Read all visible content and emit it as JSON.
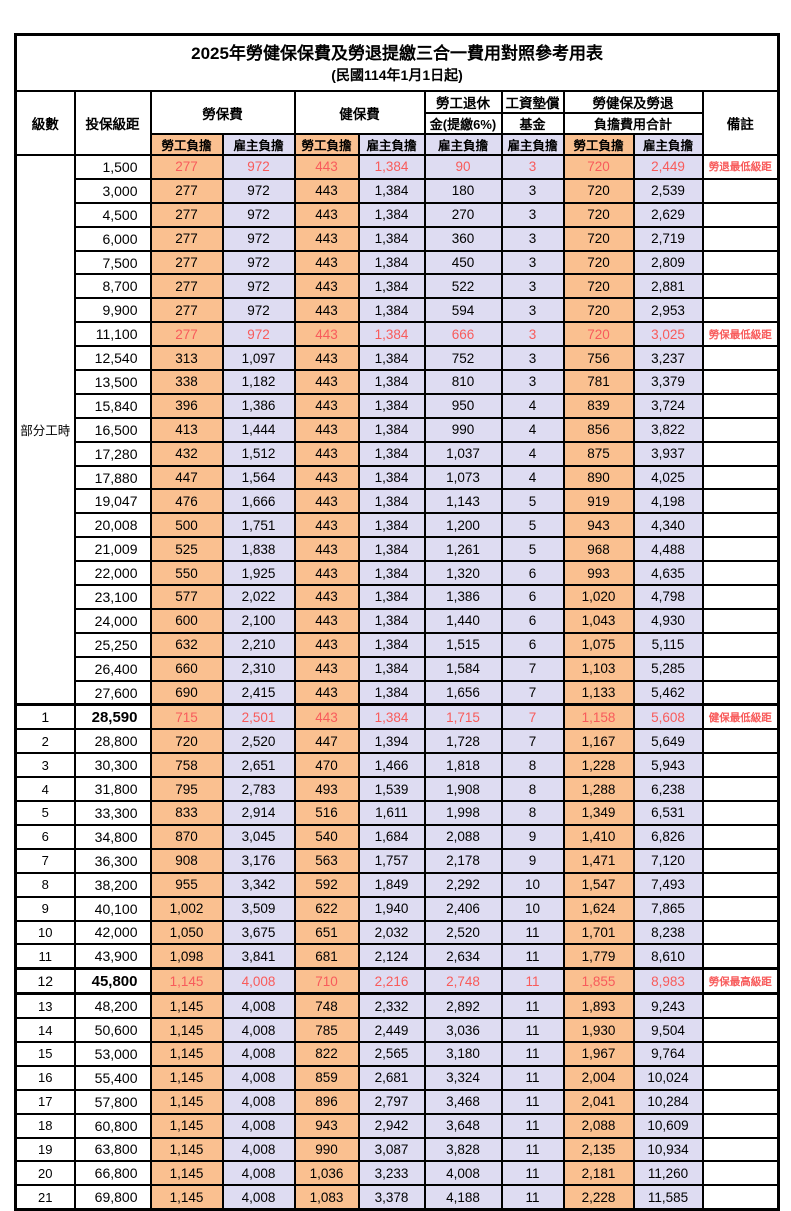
{
  "title": "2025年勞健保保費及勞退提繳三合一費用對照參考用表",
  "subtitle": "(民國114年1月1日起)",
  "colors": {
    "employee_bg": "#fac090",
    "employer_bg": "#dedcf2",
    "highlight_text": "#f85b5b",
    "border": "#000000"
  },
  "header": {
    "level": "級數",
    "bracket": "投保級距",
    "labor_insurance": "勞保費",
    "health_insurance": "健保費",
    "pension_line1": "勞工退休",
    "pension_line2": "金(提繳6%)",
    "wage_fund_line1": "工資墊償",
    "wage_fund_line2": "基金",
    "total_line1": "勞健保及勞退",
    "total_line2": "負擔費用合計",
    "remark": "備註",
    "employee": "勞工負擔",
    "employer": "雇主負擔"
  },
  "part_time_label": "部分工時",
  "rows": [
    {
      "level": "",
      "bracket": "1,500",
      "li_emp": "277",
      "li_er": "972",
      "hi_emp": "443",
      "hi_er": "1,384",
      "pension": "90",
      "wage_fund": "3",
      "total_emp": "720",
      "total_er": "2,449",
      "remark": "勞退最低級距",
      "highlight": true
    },
    {
      "level": "",
      "bracket": "3,000",
      "li_emp": "277",
      "li_er": "972",
      "hi_emp": "443",
      "hi_er": "1,384",
      "pension": "180",
      "wage_fund": "3",
      "total_emp": "720",
      "total_er": "2,539",
      "remark": ""
    },
    {
      "level": "",
      "bracket": "4,500",
      "li_emp": "277",
      "li_er": "972",
      "hi_emp": "443",
      "hi_er": "1,384",
      "pension": "270",
      "wage_fund": "3",
      "total_emp": "720",
      "total_er": "2,629",
      "remark": ""
    },
    {
      "level": "",
      "bracket": "6,000",
      "li_emp": "277",
      "li_er": "972",
      "hi_emp": "443",
      "hi_er": "1,384",
      "pension": "360",
      "wage_fund": "3",
      "total_emp": "720",
      "total_er": "2,719",
      "remark": ""
    },
    {
      "level": "",
      "bracket": "7,500",
      "li_emp": "277",
      "li_er": "972",
      "hi_emp": "443",
      "hi_er": "1,384",
      "pension": "450",
      "wage_fund": "3",
      "total_emp": "720",
      "total_er": "2,809",
      "remark": ""
    },
    {
      "level": "",
      "bracket": "8,700",
      "li_emp": "277",
      "li_er": "972",
      "hi_emp": "443",
      "hi_er": "1,384",
      "pension": "522",
      "wage_fund": "3",
      "total_emp": "720",
      "total_er": "2,881",
      "remark": ""
    },
    {
      "level": "",
      "bracket": "9,900",
      "li_emp": "277",
      "li_er": "972",
      "hi_emp": "443",
      "hi_er": "1,384",
      "pension": "594",
      "wage_fund": "3",
      "total_emp": "720",
      "total_er": "2,953",
      "remark": ""
    },
    {
      "level": "",
      "bracket": "11,100",
      "li_emp": "277",
      "li_er": "972",
      "hi_emp": "443",
      "hi_er": "1,384",
      "pension": "666",
      "wage_fund": "3",
      "total_emp": "720",
      "total_er": "3,025",
      "remark": "勞保最低級距",
      "highlight": true
    },
    {
      "level": "",
      "bracket": "12,540",
      "li_emp": "313",
      "li_er": "1,097",
      "hi_emp": "443",
      "hi_er": "1,384",
      "pension": "752",
      "wage_fund": "3",
      "total_emp": "756",
      "total_er": "3,237",
      "remark": ""
    },
    {
      "level": "",
      "bracket": "13,500",
      "li_emp": "338",
      "li_er": "1,182",
      "hi_emp": "443",
      "hi_er": "1,384",
      "pension": "810",
      "wage_fund": "3",
      "total_emp": "781",
      "total_er": "3,379",
      "remark": ""
    },
    {
      "level": "",
      "bracket": "15,840",
      "li_emp": "396",
      "li_er": "1,386",
      "hi_emp": "443",
      "hi_er": "1,384",
      "pension": "950",
      "wage_fund": "4",
      "total_emp": "839",
      "total_er": "3,724",
      "remark": ""
    },
    {
      "level": "",
      "bracket": "16,500",
      "li_emp": "413",
      "li_er": "1,444",
      "hi_emp": "443",
      "hi_er": "1,384",
      "pension": "990",
      "wage_fund": "4",
      "total_emp": "856",
      "total_er": "3,822",
      "remark": ""
    },
    {
      "level": "",
      "bracket": "17,280",
      "li_emp": "432",
      "li_er": "1,512",
      "hi_emp": "443",
      "hi_er": "1,384",
      "pension": "1,037",
      "wage_fund": "4",
      "total_emp": "875",
      "total_er": "3,937",
      "remark": ""
    },
    {
      "level": "",
      "bracket": "17,880",
      "li_emp": "447",
      "li_er": "1,564",
      "hi_emp": "443",
      "hi_er": "1,384",
      "pension": "1,073",
      "wage_fund": "4",
      "total_emp": "890",
      "total_er": "4,025",
      "remark": ""
    },
    {
      "level": "",
      "bracket": "19,047",
      "li_emp": "476",
      "li_er": "1,666",
      "hi_emp": "443",
      "hi_er": "1,384",
      "pension": "1,143",
      "wage_fund": "5",
      "total_emp": "919",
      "total_er": "4,198",
      "remark": ""
    },
    {
      "level": "",
      "bracket": "20,008",
      "li_emp": "500",
      "li_er": "1,751",
      "hi_emp": "443",
      "hi_er": "1,384",
      "pension": "1,200",
      "wage_fund": "5",
      "total_emp": "943",
      "total_er": "4,340",
      "remark": ""
    },
    {
      "level": "",
      "bracket": "21,009",
      "li_emp": "525",
      "li_er": "1,838",
      "hi_emp": "443",
      "hi_er": "1,384",
      "pension": "1,261",
      "wage_fund": "5",
      "total_emp": "968",
      "total_er": "4,488",
      "remark": ""
    },
    {
      "level": "",
      "bracket": "22,000",
      "li_emp": "550",
      "li_er": "1,925",
      "hi_emp": "443",
      "hi_er": "1,384",
      "pension": "1,320",
      "wage_fund": "6",
      "total_emp": "993",
      "total_er": "4,635",
      "remark": ""
    },
    {
      "level": "",
      "bracket": "23,100",
      "li_emp": "577",
      "li_er": "2,022",
      "hi_emp": "443",
      "hi_er": "1,384",
      "pension": "1,386",
      "wage_fund": "6",
      "total_emp": "1,020",
      "total_er": "4,798",
      "remark": ""
    },
    {
      "level": "",
      "bracket": "24,000",
      "li_emp": "600",
      "li_er": "2,100",
      "hi_emp": "443",
      "hi_er": "1,384",
      "pension": "1,440",
      "wage_fund": "6",
      "total_emp": "1,043",
      "total_er": "4,930",
      "remark": ""
    },
    {
      "level": "",
      "bracket": "25,250",
      "li_emp": "632",
      "li_er": "2,210",
      "hi_emp": "443",
      "hi_er": "1,384",
      "pension": "1,515",
      "wage_fund": "6",
      "total_emp": "1,075",
      "total_er": "5,115",
      "remark": ""
    },
    {
      "level": "",
      "bracket": "26,400",
      "li_emp": "660",
      "li_er": "2,310",
      "hi_emp": "443",
      "hi_er": "1,384",
      "pension": "1,584",
      "wage_fund": "7",
      "total_emp": "1,103",
      "total_er": "5,285",
      "remark": ""
    },
    {
      "level": "",
      "bracket": "27,600",
      "li_emp": "690",
      "li_er": "2,415",
      "hi_emp": "443",
      "hi_er": "1,384",
      "pension": "1,656",
      "wage_fund": "7",
      "total_emp": "1,133",
      "total_er": "5,462",
      "remark": ""
    },
    {
      "level": "1",
      "bracket": "28,590",
      "li_emp": "715",
      "li_er": "2,501",
      "hi_emp": "443",
      "hi_er": "1,384",
      "pension": "1,715",
      "wage_fund": "7",
      "total_emp": "1,158",
      "total_er": "5,608",
      "remark": "健保最低級距",
      "highlight": true,
      "bold": true,
      "thick_top": true
    },
    {
      "level": "2",
      "bracket": "28,800",
      "li_emp": "720",
      "li_er": "2,520",
      "hi_emp": "447",
      "hi_er": "1,394",
      "pension": "1,728",
      "wage_fund": "7",
      "total_emp": "1,167",
      "total_er": "5,649",
      "remark": ""
    },
    {
      "level": "3",
      "bracket": "30,300",
      "li_emp": "758",
      "li_er": "2,651",
      "hi_emp": "470",
      "hi_er": "1,466",
      "pension": "1,818",
      "wage_fund": "8",
      "total_emp": "1,228",
      "total_er": "5,943",
      "remark": ""
    },
    {
      "level": "4",
      "bracket": "31,800",
      "li_emp": "795",
      "li_er": "2,783",
      "hi_emp": "493",
      "hi_er": "1,539",
      "pension": "1,908",
      "wage_fund": "8",
      "total_emp": "1,288",
      "total_er": "6,238",
      "remark": ""
    },
    {
      "level": "5",
      "bracket": "33,300",
      "li_emp": "833",
      "li_er": "2,914",
      "hi_emp": "516",
      "hi_er": "1,611",
      "pension": "1,998",
      "wage_fund": "8",
      "total_emp": "1,349",
      "total_er": "6,531",
      "remark": ""
    },
    {
      "level": "6",
      "bracket": "34,800",
      "li_emp": "870",
      "li_er": "3,045",
      "hi_emp": "540",
      "hi_er": "1,684",
      "pension": "2,088",
      "wage_fund": "9",
      "total_emp": "1,410",
      "total_er": "6,826",
      "remark": ""
    },
    {
      "level": "7",
      "bracket": "36,300",
      "li_emp": "908",
      "li_er": "3,176",
      "hi_emp": "563",
      "hi_er": "1,757",
      "pension": "2,178",
      "wage_fund": "9",
      "total_emp": "1,471",
      "total_er": "7,120",
      "remark": ""
    },
    {
      "level": "8",
      "bracket": "38,200",
      "li_emp": "955",
      "li_er": "3,342",
      "hi_emp": "592",
      "hi_er": "1,849",
      "pension": "2,292",
      "wage_fund": "10",
      "total_emp": "1,547",
      "total_er": "7,493",
      "remark": ""
    },
    {
      "level": "9",
      "bracket": "40,100",
      "li_emp": "1,002",
      "li_er": "3,509",
      "hi_emp": "622",
      "hi_er": "1,940",
      "pension": "2,406",
      "wage_fund": "10",
      "total_emp": "1,624",
      "total_er": "7,865",
      "remark": ""
    },
    {
      "level": "10",
      "bracket": "42,000",
      "li_emp": "1,050",
      "li_er": "3,675",
      "hi_emp": "651",
      "hi_er": "2,032",
      "pension": "2,520",
      "wage_fund": "11",
      "total_emp": "1,701",
      "total_er": "8,238",
      "remark": ""
    },
    {
      "level": "11",
      "bracket": "43,900",
      "li_emp": "1,098",
      "li_er": "3,841",
      "hi_emp": "681",
      "hi_er": "2,124",
      "pension": "2,634",
      "wage_fund": "11",
      "total_emp": "1,779",
      "total_er": "8,610",
      "remark": ""
    },
    {
      "level": "12",
      "bracket": "45,800",
      "li_emp": "1,145",
      "li_er": "4,008",
      "hi_emp": "710",
      "hi_er": "2,216",
      "pension": "2,748",
      "wage_fund": "11",
      "total_emp": "1,855",
      "total_er": "8,983",
      "remark": "勞保最高級距",
      "highlight": true,
      "bold": true,
      "thick_top": true
    },
    {
      "level": "13",
      "bracket": "48,200",
      "li_emp": "1,145",
      "li_er": "4,008",
      "hi_emp": "748",
      "hi_er": "2,332",
      "pension": "2,892",
      "wage_fund": "11",
      "total_emp": "1,893",
      "total_er": "9,243",
      "remark": "",
      "thick_top": true
    },
    {
      "level": "14",
      "bracket": "50,600",
      "li_emp": "1,145",
      "li_er": "4,008",
      "hi_emp": "785",
      "hi_er": "2,449",
      "pension": "3,036",
      "wage_fund": "11",
      "total_emp": "1,930",
      "total_er": "9,504",
      "remark": ""
    },
    {
      "level": "15",
      "bracket": "53,000",
      "li_emp": "1,145",
      "li_er": "4,008",
      "hi_emp": "822",
      "hi_er": "2,565",
      "pension": "3,180",
      "wage_fund": "11",
      "total_emp": "1,967",
      "total_er": "9,764",
      "remark": ""
    },
    {
      "level": "16",
      "bracket": "55,400",
      "li_emp": "1,145",
      "li_er": "4,008",
      "hi_emp": "859",
      "hi_er": "2,681",
      "pension": "3,324",
      "wage_fund": "11",
      "total_emp": "2,004",
      "total_er": "10,024",
      "remark": ""
    },
    {
      "level": "17",
      "bracket": "57,800",
      "li_emp": "1,145",
      "li_er": "4,008",
      "hi_emp": "896",
      "hi_er": "2,797",
      "pension": "3,468",
      "wage_fund": "11",
      "total_emp": "2,041",
      "total_er": "10,284",
      "remark": ""
    },
    {
      "level": "18",
      "bracket": "60,800",
      "li_emp": "1,145",
      "li_er": "4,008",
      "hi_emp": "943",
      "hi_er": "2,942",
      "pension": "3,648",
      "wage_fund": "11",
      "total_emp": "2,088",
      "total_er": "10,609",
      "remark": ""
    },
    {
      "level": "19",
      "bracket": "63,800",
      "li_emp": "1,145",
      "li_er": "4,008",
      "hi_emp": "990",
      "hi_er": "3,087",
      "pension": "3,828",
      "wage_fund": "11",
      "total_emp": "2,135",
      "total_er": "10,934",
      "remark": ""
    },
    {
      "level": "20",
      "bracket": "66,800",
      "li_emp": "1,145",
      "li_er": "4,008",
      "hi_emp": "1,036",
      "hi_er": "3,233",
      "pension": "4,008",
      "wage_fund": "11",
      "total_emp": "2,181",
      "total_er": "11,260",
      "remark": ""
    },
    {
      "level": "21",
      "bracket": "69,800",
      "li_emp": "1,145",
      "li_er": "4,008",
      "hi_emp": "1,083",
      "hi_er": "3,378",
      "pension": "4,188",
      "wage_fund": "11",
      "total_emp": "2,228",
      "total_er": "11,585",
      "remark": ""
    }
  ]
}
